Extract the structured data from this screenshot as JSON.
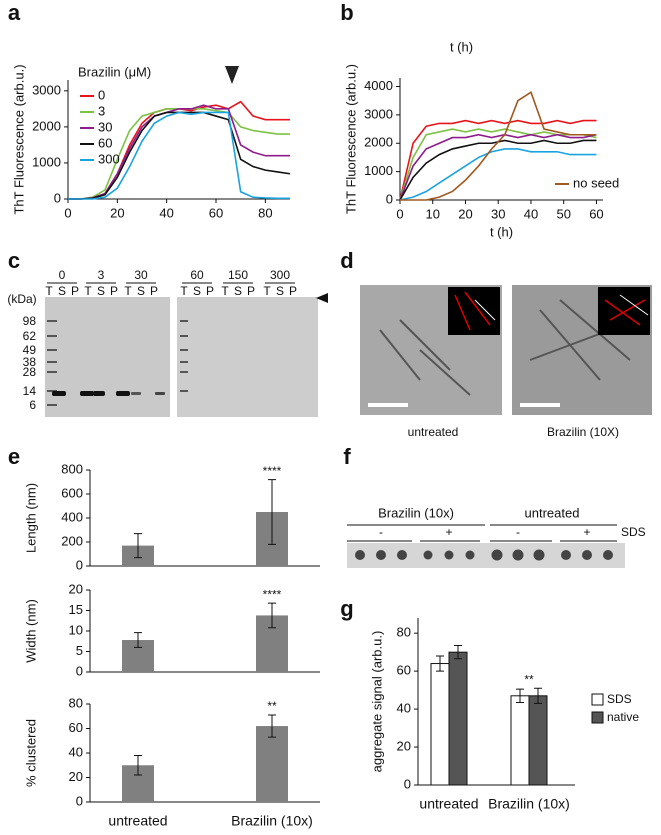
{
  "panel_labels": [
    "a",
    "b",
    "c",
    "d",
    "e",
    "f",
    "g"
  ],
  "chart_data": [
    {
      "type": "line",
      "ylabel": "ThT Fluorescence (arb.u.)",
      "legend_title": "Brazilin (μM)",
      "legend": "top-left",
      "x": [
        0,
        5,
        10,
        15,
        20,
        25,
        30,
        35,
        40,
        45,
        50,
        55,
        60,
        65,
        70,
        75,
        80,
        85,
        90
      ],
      "xlim": [
        0,
        90
      ],
      "xticks": [
        0,
        20,
        40,
        60,
        80
      ],
      "ylim": [
        0,
        3300
      ],
      "yticks": [
        0,
        1000,
        2000,
        3000
      ],
      "series": [
        {
          "name": "0",
          "color": "#e8141b",
          "values": [
            0,
            0,
            30,
            150,
            700,
            1500,
            2100,
            2400,
            2500,
            2500,
            2450,
            2550,
            2600,
            2500,
            2700,
            2300,
            2200,
            2200,
            2200
          ]
        },
        {
          "name": "3",
          "color": "#7dc242",
          "values": [
            0,
            0,
            50,
            250,
            1100,
            1900,
            2300,
            2400,
            2500,
            2500,
            2500,
            2500,
            2450,
            2400,
            2000,
            1900,
            1850,
            1800,
            1800
          ]
        },
        {
          "name": "30",
          "color": "#8e1c8c",
          "values": [
            0,
            0,
            30,
            150,
            700,
            1400,
            2000,
            2300,
            2400,
            2500,
            2500,
            2600,
            2500,
            2500,
            1500,
            1300,
            1200,
            1200,
            1200
          ]
        },
        {
          "name": "60",
          "color": "#111111",
          "values": [
            0,
            0,
            20,
            120,
            600,
            1300,
            1900,
            2300,
            2400,
            2400,
            2400,
            2400,
            2300,
            2200,
            1100,
            900,
            800,
            750,
            700
          ]
        },
        {
          "name": "300",
          "color": "#1aa3e0",
          "values": [
            0,
            0,
            0,
            50,
            300,
            900,
            1600,
            2100,
            2300,
            2400,
            2350,
            2400,
            2400,
            2400,
            200,
            50,
            30,
            20,
            20
          ]
        }
      ]
    },
    {
      "type": "line",
      "title": "t (h)",
      "xlabel": "t (h)",
      "ylabel": "ThT Fluorescence (arb.u.)",
      "legend": "bottom-right",
      "x": [
        0,
        4,
        8,
        12,
        16,
        20,
        24,
        28,
        32,
        36,
        40,
        44,
        48,
        52,
        56,
        60
      ],
      "xlim": [
        0,
        62
      ],
      "xticks": [
        0,
        10,
        20,
        30,
        40,
        50,
        60
      ],
      "ylim": [
        0,
        4300
      ],
      "yticks": [
        0,
        1000,
        2000,
        3000,
        4000
      ],
      "series": [
        {
          "color": "#e8141b",
          "values": [
            0,
            2000,
            2600,
            2700,
            2700,
            2800,
            2700,
            2800,
            2700,
            2800,
            2700,
            2700,
            2800,
            2700,
            2800,
            2800
          ]
        },
        {
          "color": "#7dc242",
          "values": [
            0,
            1500,
            2300,
            2400,
            2500,
            2400,
            2500,
            2400,
            2500,
            2400,
            2300,
            2400,
            2300,
            2300,
            2300,
            2200
          ]
        },
        {
          "color": "#8e1c8c",
          "values": [
            0,
            1200,
            1800,
            2000,
            2200,
            2200,
            2300,
            2200,
            2300,
            2200,
            2300,
            2200,
            2300,
            2200,
            2200,
            2300
          ]
        },
        {
          "color": "#111111",
          "values": [
            0,
            800,
            1300,
            1600,
            1800,
            1900,
            2000,
            2000,
            2100,
            2000,
            2000,
            2100,
            2000,
            2000,
            2100,
            2100
          ]
        },
        {
          "color": "#1aa3e0",
          "values": [
            0,
            100,
            300,
            600,
            900,
            1200,
            1500,
            1700,
            1800,
            1800,
            1700,
            1700,
            1700,
            1600,
            1600,
            1600
          ]
        },
        {
          "name": "no seed",
          "color": "#a0591e",
          "values": [
            0,
            0,
            0,
            100,
            300,
            700,
            1200,
            1800,
            2300,
            3500,
            3800,
            2500,
            2400,
            2300,
            2300,
            2300
          ]
        }
      ]
    },
    {
      "type": "bar",
      "ylabel": "Length (nm)",
      "color": "#808080",
      "values": [
        170,
        450
      ],
      "errors": [
        100,
        270
      ],
      "annotation": "****",
      "ylim": [
        0,
        800
      ],
      "yticks": [
        0,
        200,
        400,
        600,
        800
      ]
    },
    {
      "type": "bar",
      "ylabel": "Width (nm)",
      "color": "#808080",
      "values": [
        7.8,
        13.8
      ],
      "errors": [
        1.8,
        3
      ],
      "annotation": "****",
      "ylim": [
        0,
        20
      ],
      "yticks": [
        0,
        5,
        10,
        15,
        20
      ]
    },
    {
      "type": "bar",
      "ylabel": "% clustered",
      "color": "#808080",
      "values": [
        30,
        62
      ],
      "errors": [
        8,
        9
      ],
      "annotation": "**",
      "ylim": [
        0,
        80
      ],
      "yticks": [
        0,
        20,
        40,
        60,
        80
      ],
      "categories": [
        "untreated",
        "Brazilin (10x)"
      ]
    },
    {
      "type": "bar",
      "ylabel": "aggregate signal (arb.u.)",
      "categories": [
        "untreated",
        "Brazilin (10x)"
      ],
      "annotation": "**",
      "ylim": [
        0,
        88
      ],
      "yticks": [
        0,
        20,
        40,
        60,
        80
      ],
      "series": [
        {
          "name": "SDS",
          "color": "#ffffff",
          "values": [
            64,
            47
          ],
          "errors": [
            4,
            3.5
          ]
        },
        {
          "name": "native",
          "color": "#555555",
          "values": [
            70,
            47
          ],
          "errors": [
            3.5,
            4
          ]
        }
      ]
    }
  ],
  "gel": {
    "unit": "(kDa)",
    "markers": [
      "98",
      "62",
      "49",
      "38",
      "28",
      "14",
      "6"
    ],
    "concentrations": [
      "0",
      "3",
      "30",
      "60",
      "150",
      "300"
    ],
    "lanes": [
      "T",
      "S",
      "P"
    ]
  },
  "micrographs": {
    "captions": [
      "untreated",
      "Brazilin (10X)"
    ]
  },
  "dot_blot": {
    "groups": [
      "Brazilin (10x)",
      "untreated"
    ],
    "signs": [
      "-",
      "+",
      "-",
      "+"
    ],
    "reagent": "SDS"
  }
}
